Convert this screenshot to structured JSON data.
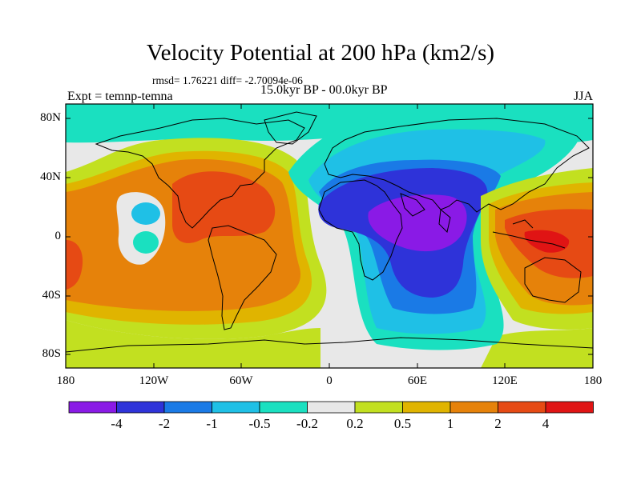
{
  "title": "Velocity Potential at 200 hPa (km2/s)",
  "stats": "rmsd= 1.76221 diff= -2.70094e-06",
  "experiment": "Expt = temnp-temna",
  "period": "15.0kyr BP - 00.0kyr BP",
  "season": "JJA",
  "y_ticks": [
    "80N",
    "40N",
    "0",
    "40S",
    "80S"
  ],
  "x_ticks": [
    "180",
    "120W",
    "60W",
    "0",
    "60E",
    "120E",
    "180"
  ],
  "colorbar": {
    "colors": [
      "#8a1ae6",
      "#2e33d9",
      "#1a7ae6",
      "#1fc0e6",
      "#1ae0c0",
      "#e8e8e8",
      "#c2e020",
      "#e0b400",
      "#e6820a",
      "#e64a14",
      "#e01414"
    ],
    "labels": [
      "-4",
      "-2",
      "-1",
      "-0.5",
      "-0.2",
      "0.2",
      "0.5",
      "1",
      "2",
      "4"
    ]
  }
}
